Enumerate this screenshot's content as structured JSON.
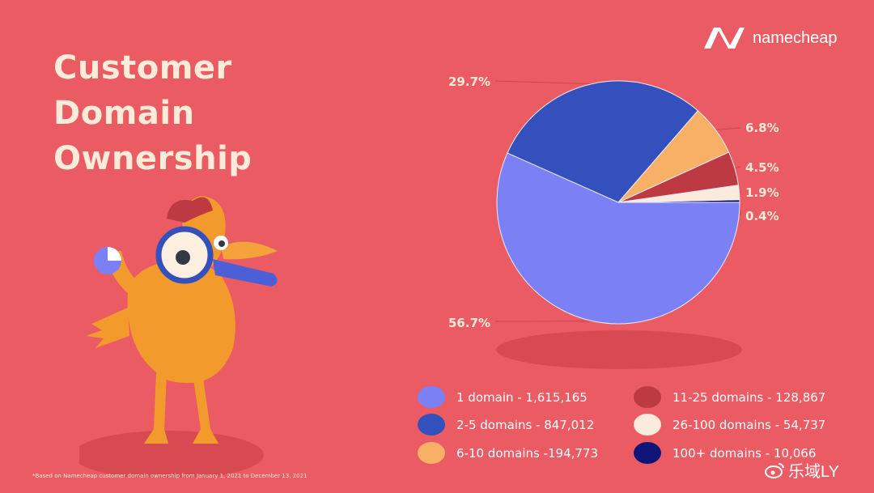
{
  "title_lines": [
    "Customer",
    "Domain",
    "Ownership"
  ],
  "brand": {
    "name": "namecheap",
    "logo_icon": "namecheap-logo-icon"
  },
  "footnote": "*Based on Namecheap customer domain ownership from January 1, 2021 to December 13, 2021",
  "watermark": {
    "text": "乐域LY",
    "icon": "weibo-icon"
  },
  "chart_data": {
    "type": "pie",
    "title": "Customer Domain Ownership",
    "slices": [
      {
        "label": "1 domain",
        "value": 1615165,
        "percent": 56.7,
        "percent_label": "56.7%",
        "legend": "1 domain - 1,615,165",
        "color": "#7B81F5"
      },
      {
        "label": "2-5 domains",
        "value": 847012,
        "percent": 29.7,
        "percent_label": "29.7%",
        "legend": "2-5 domains - 847,012",
        "color": "#3450BD"
      },
      {
        "label": "6-10 domains",
        "value": 194773,
        "percent": 6.8,
        "percent_label": "6.8%",
        "legend": "6-10 domains -194,773",
        "color": "#F8B066"
      },
      {
        "label": "11-25 domains",
        "value": 128867,
        "percent": 4.5,
        "percent_label": "4.5%",
        "legend": "11-25 domains - 128,867",
        "color": "#BE3A42"
      },
      {
        "label": "26-100 domains",
        "value": 54737,
        "percent": 1.9,
        "percent_label": "1.9%",
        "legend": "26-100 domains - 54,737",
        "color": "#FBEBDD"
      },
      {
        "label": "100+ domains",
        "value": 10066,
        "percent": 0.4,
        "percent_label": "0.4%",
        "legend": "100+ domains - 10,066",
        "color": "#0F1577"
      }
    ],
    "legend_placement": "bottom"
  }
}
